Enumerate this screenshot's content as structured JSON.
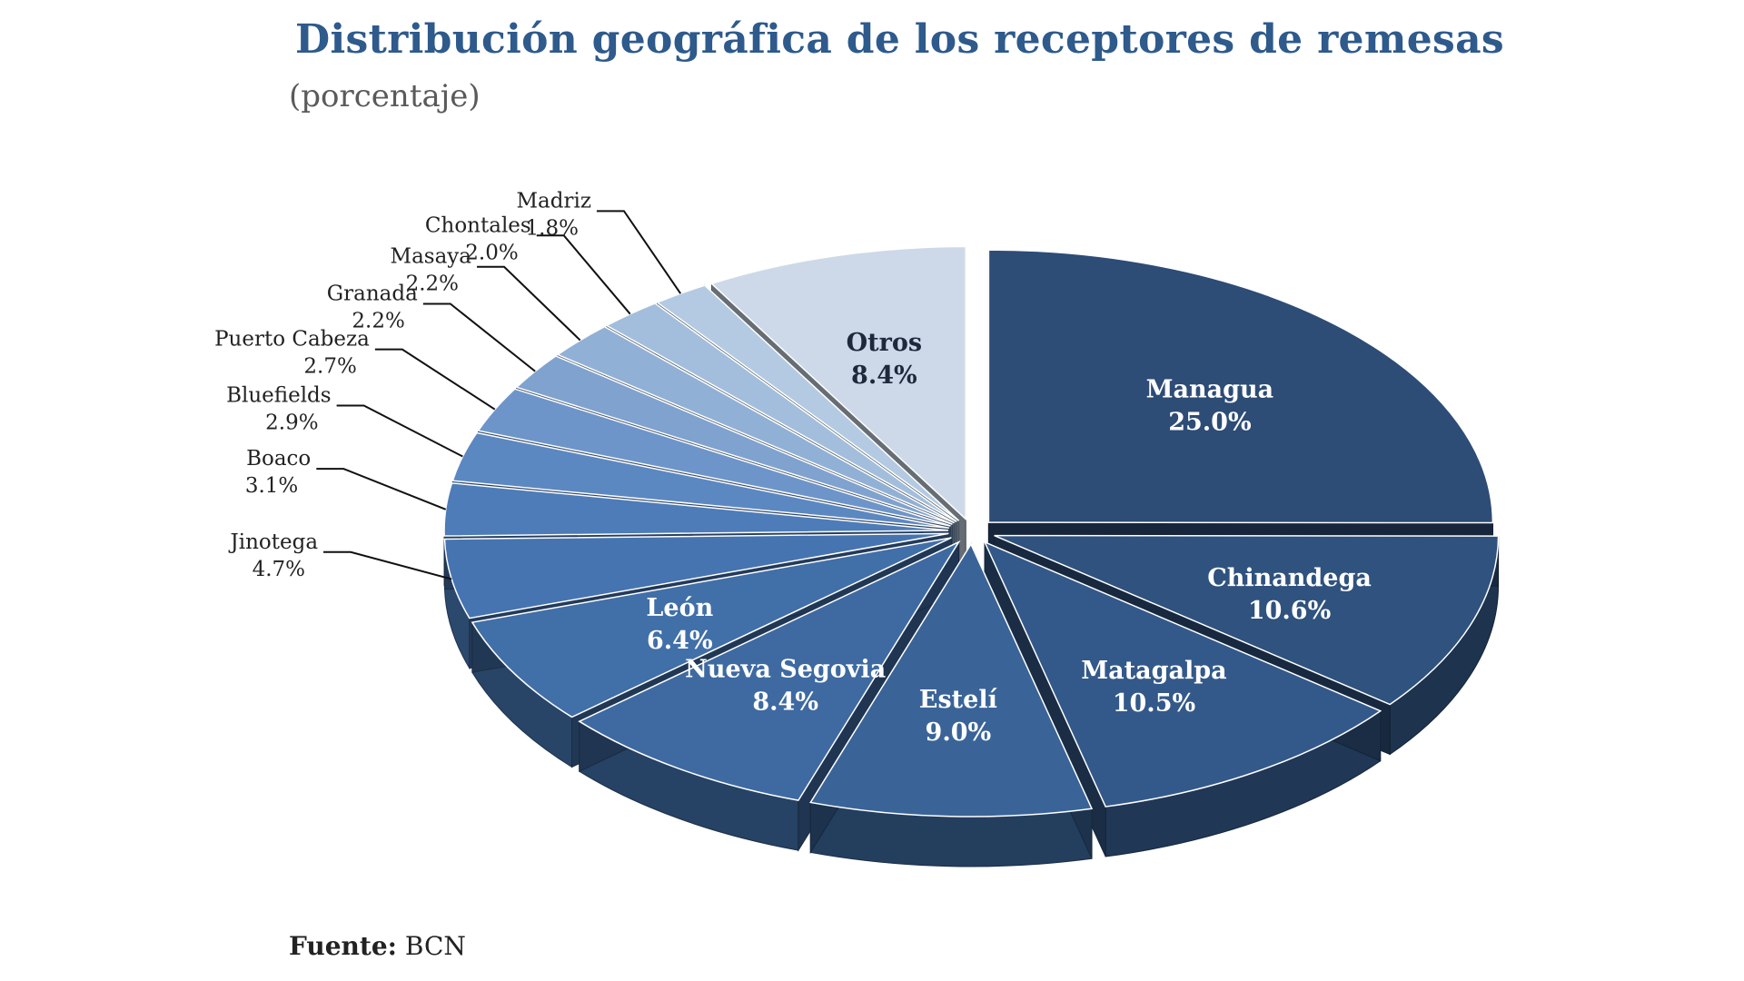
{
  "chart_title": "Distribución geográfica de los receptores de remesas",
  "chart_subtitle": "(porcentaje)",
  "source_label": "Fuente:",
  "source_value": "BCN",
  "chart_data": {
    "type": "pie",
    "title": "Distribución geográfica de los receptores de remesas",
    "subtitle": "(porcentaje)",
    "unit": "%",
    "style": "3d-exploded",
    "slices": [
      {
        "name": "Managua",
        "value": 25.0,
        "label": "25.0%",
        "color": "#2d4c76",
        "label_mode": "inside"
      },
      {
        "name": "Chinandega",
        "value": 10.6,
        "label": "10.6%",
        "color": "#2f527e",
        "label_mode": "inside"
      },
      {
        "name": "Matagalpa",
        "value": 10.5,
        "label": "10.5%",
        "color": "#33598a",
        "label_mode": "inside"
      },
      {
        "name": "Estelí",
        "value": 9.0,
        "label": "9.0%",
        "color": "#3a6498",
        "label_mode": "inside"
      },
      {
        "name": "Nueva Segovia",
        "value": 8.4,
        "label": "8.4%",
        "color": "#3e6aa1",
        "label_mode": "inside"
      },
      {
        "name": "León",
        "value": 6.4,
        "label": "6.4%",
        "color": "#416fa8",
        "label_mode": "inside"
      },
      {
        "name": "Jinotega",
        "value": 4.7,
        "label": "4.7%",
        "color": "#4674b0",
        "label_mode": "outside"
      },
      {
        "name": "Boaco",
        "value": 3.1,
        "label": "3.1%",
        "color": "#4d7cb8",
        "label_mode": "outside"
      },
      {
        "name": "Bluefields",
        "value": 2.9,
        "label": "2.9%",
        "color": "#5c88c2",
        "label_mode": "outside"
      },
      {
        "name": "Puerto Cabeza",
        "value": 2.7,
        "label": "2.7%",
        "color": "#6d95c9",
        "label_mode": "outside"
      },
      {
        "name": "Granada",
        "value": 2.2,
        "label": "2.2%",
        "color": "#7fa2cf",
        "label_mode": "outside"
      },
      {
        "name": "Masaya",
        "value": 2.2,
        "label": "2.2%",
        "color": "#91b0d6",
        "label_mode": "outside"
      },
      {
        "name": "Chontales",
        "value": 2.0,
        "label": "2.0%",
        "color": "#a2bedc",
        "label_mode": "outside"
      },
      {
        "name": "Madriz",
        "value": 1.8,
        "label": "1.8%",
        "color": "#b3cae2",
        "label_mode": "outside"
      },
      {
        "name": "Otros",
        "value": 8.4,
        "label": "8.4%",
        "color": "#cdd9e8",
        "label_mode": "inside"
      }
    ]
  }
}
